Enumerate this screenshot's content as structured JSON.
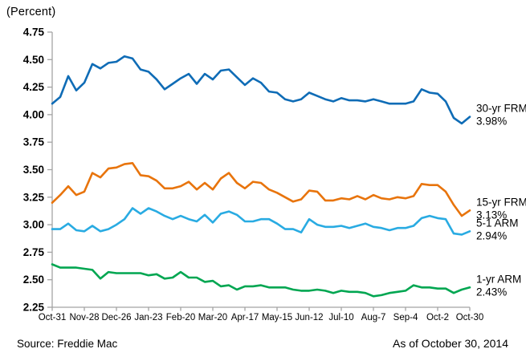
{
  "footer": {
    "source": "Source: Freddie Mac",
    "as_of": "As of October 30, 2014"
  },
  "chart_data": {
    "type": "line",
    "title": "",
    "xlabel": "",
    "ylabel": "(Percent)",
    "ylim": [
      2.25,
      4.75
    ],
    "ytick_step": 0.25,
    "grid": false,
    "legend_position": "right-end-labels",
    "axis_color": "#a3a3a3",
    "text_color": "#000000",
    "x_count": 53,
    "x_tick_every": 4,
    "x_tick_labels": [
      "Oct-31",
      "Nov-28",
      "Dec-26",
      "Jan-23",
      "Feb-20",
      "Mar-20",
      "Apr-17",
      "May-15",
      "Jun-12",
      "Jul-10",
      "Aug-7",
      "Sep-4",
      "Oct-2",
      "Oct-30"
    ],
    "series": [
      {
        "name": "30-yr FRM",
        "end_label": "3.98%",
        "color": "#0f6cb6",
        "values": [
          4.1,
          4.16,
          4.35,
          4.22,
          4.29,
          4.46,
          4.42,
          4.47,
          4.48,
          4.53,
          4.51,
          4.41,
          4.39,
          4.32,
          4.23,
          4.28,
          4.33,
          4.37,
          4.28,
          4.37,
          4.32,
          4.4,
          4.41,
          4.34,
          4.27,
          4.33,
          4.29,
          4.21,
          4.2,
          4.14,
          4.12,
          4.14,
          4.2,
          4.17,
          4.14,
          4.12,
          4.15,
          4.13,
          4.13,
          4.12,
          4.14,
          4.12,
          4.1,
          4.1,
          4.1,
          4.12,
          4.23,
          4.2,
          4.19,
          4.12,
          3.97,
          3.92,
          3.98
        ]
      },
      {
        "name": "15-yr FRM",
        "end_label": "3.13%",
        "color": "#e8740c",
        "values": [
          3.2,
          3.27,
          3.35,
          3.27,
          3.3,
          3.47,
          3.43,
          3.51,
          3.52,
          3.55,
          3.56,
          3.45,
          3.44,
          3.4,
          3.33,
          3.33,
          3.35,
          3.39,
          3.32,
          3.38,
          3.32,
          3.42,
          3.47,
          3.38,
          3.33,
          3.39,
          3.38,
          3.32,
          3.29,
          3.25,
          3.21,
          3.23,
          3.31,
          3.3,
          3.22,
          3.22,
          3.24,
          3.23,
          3.26,
          3.23,
          3.27,
          3.24,
          3.23,
          3.25,
          3.24,
          3.26,
          3.37,
          3.36,
          3.36,
          3.3,
          3.18,
          3.08,
          3.13
        ]
      },
      {
        "name": "5-1 ARM",
        "end_label": "2.94%",
        "color": "#29abe2",
        "values": [
          2.96,
          2.96,
          3.01,
          2.95,
          2.94,
          2.99,
          2.94,
          2.96,
          3.0,
          3.05,
          3.15,
          3.1,
          3.15,
          3.12,
          3.08,
          3.05,
          3.08,
          3.05,
          3.03,
          3.09,
          3.02,
          3.1,
          3.12,
          3.09,
          3.03,
          3.03,
          3.05,
          3.05,
          3.01,
          2.96,
          2.96,
          2.93,
          3.05,
          3.0,
          2.98,
          2.98,
          2.99,
          2.97,
          2.99,
          3.01,
          2.98,
          2.97,
          2.95,
          2.97,
          2.97,
          2.99,
          3.06,
          3.08,
          3.06,
          3.05,
          2.92,
          2.91,
          2.94
        ]
      },
      {
        "name": "1-yr ARM",
        "end_label": "2.43%",
        "color": "#00a651",
        "values": [
          2.64,
          2.61,
          2.61,
          2.61,
          2.6,
          2.59,
          2.51,
          2.57,
          2.56,
          2.56,
          2.56,
          2.56,
          2.54,
          2.55,
          2.51,
          2.52,
          2.57,
          2.52,
          2.52,
          2.48,
          2.49,
          2.44,
          2.45,
          2.41,
          2.44,
          2.44,
          2.45,
          2.43,
          2.43,
          2.43,
          2.41,
          2.4,
          2.4,
          2.41,
          2.4,
          2.38,
          2.4,
          2.39,
          2.39,
          2.38,
          2.35,
          2.36,
          2.38,
          2.39,
          2.4,
          2.45,
          2.43,
          2.43,
          2.42,
          2.42,
          2.38,
          2.41,
          2.43
        ]
      }
    ]
  }
}
